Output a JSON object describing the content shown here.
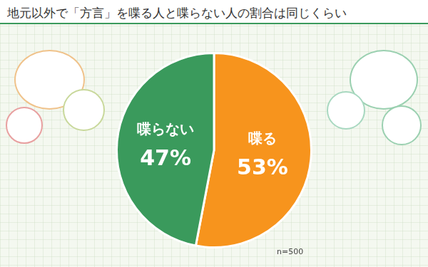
{
  "chart_data": {
    "type": "pie",
    "title": "地元以外で「方言」を喋る人と喋らない人の割合は同じくらい",
    "categories": [
      "喋る",
      "喋らない"
    ],
    "values": [
      53,
      47
    ],
    "value_labels": [
      "53%",
      "47%"
    ],
    "colors": [
      "#f7941d",
      "#3a9a5c"
    ],
    "data_labels": true,
    "annotations": [
      "n=500"
    ]
  }
}
